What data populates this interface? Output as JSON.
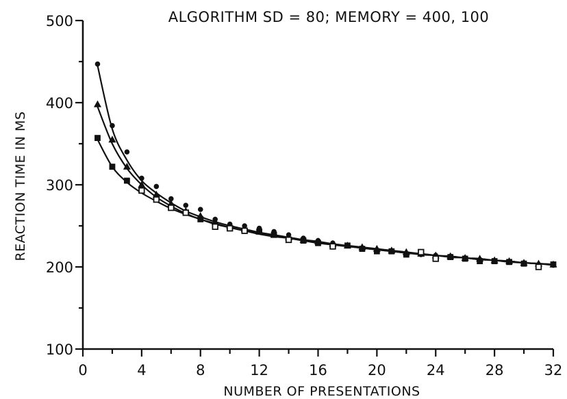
{
  "chart_data": {
    "type": "scatter",
    "title": "ALGORITHM SD = 80; MEMORY = 400, 100",
    "xlabel": "NUMBER OF PRESENTATIONS",
    "ylabel": "REACTION TIME IN MS",
    "xlim": [
      0,
      32
    ],
    "ylim": [
      100,
      500
    ],
    "xticks": [
      0,
      4,
      8,
      12,
      16,
      20,
      24,
      28,
      32
    ],
    "yticks": [
      100,
      200,
      300,
      400,
      500
    ],
    "grid": false,
    "series": [
      {
        "marker": "dot",
        "x": [
          1,
          2,
          3,
          4,
          5,
          6,
          7,
          8,
          9,
          10,
          11,
          12,
          13,
          14,
          15,
          16,
          17,
          18,
          19,
          20,
          21,
          22,
          23,
          24,
          25,
          26,
          27,
          28,
          29,
          30,
          31,
          32
        ],
        "y": [
          447,
          372,
          340,
          308,
          298,
          283,
          275,
          270,
          258,
          252,
          250,
          247,
          243,
          239,
          235,
          232,
          229,
          226,
          223,
          220,
          219,
          216,
          215,
          214,
          213,
          211,
          209,
          207,
          206,
          205,
          203,
          202
        ],
        "fit": [
          445,
          368,
          330,
          305,
          290,
          278,
          268,
          261,
          255,
          250,
          246,
          242,
          239,
          236,
          233,
          231,
          228,
          226,
          224,
          222,
          220,
          218,
          216,
          214,
          213,
          211,
          210,
          208,
          207,
          205,
          204,
          203
        ]
      },
      {
        "marker": "triangle",
        "x": [
          1,
          2,
          3,
          4,
          5,
          6,
          7,
          8,
          9,
          10,
          11,
          12,
          13,
          14,
          15,
          16,
          17,
          18,
          19,
          20,
          21,
          22,
          23,
          24,
          25,
          26,
          27,
          28,
          29,
          30,
          31,
          32
        ],
        "y": [
          398,
          355,
          322,
          300,
          288,
          277,
          268,
          262,
          255,
          250,
          246,
          243,
          239,
          236,
          233,
          231,
          228,
          226,
          224,
          222,
          220,
          218,
          216,
          214,
          213,
          211,
          210,
          208,
          207,
          205,
          204,
          203
        ],
        "fit": [
          395,
          350,
          320,
          300,
          285,
          274,
          265,
          258,
          253,
          248,
          244,
          241,
          238,
          235,
          232,
          230,
          227,
          225,
          223,
          221,
          219,
          217,
          216,
          214,
          212,
          211,
          209,
          208,
          206,
          205,
          204,
          202
        ]
      },
      {
        "marker": "square",
        "x": [
          1,
          2,
          3,
          4,
          5,
          6,
          7,
          8,
          9,
          10,
          11,
          12,
          13,
          14,
          15,
          16,
          17,
          18,
          19,
          20,
          21,
          22,
          23,
          24,
          25,
          26,
          27,
          28,
          29,
          30,
          31,
          32
        ],
        "y": [
          357,
          322,
          305,
          293,
          282,
          272,
          266,
          258,
          249,
          247,
          244,
          243,
          239,
          233,
          232,
          229,
          225,
          226,
          222,
          219,
          219,
          215,
          218,
          210,
          212,
          210,
          207,
          207,
          206,
          204,
          200,
          203
        ],
        "open": [
          false,
          false,
          false,
          true,
          true,
          true,
          true,
          false,
          true,
          true,
          true,
          false,
          false,
          true,
          false,
          false,
          true,
          false,
          false,
          false,
          false,
          false,
          true,
          true,
          false,
          false,
          false,
          false,
          false,
          false,
          true,
          false
        ],
        "fit": [
          355,
          322,
          303,
          290,
          280,
          271,
          264,
          258,
          252,
          248,
          244,
          240,
          237,
          235,
          232,
          229,
          227,
          225,
          223,
          221,
          219,
          217,
          215,
          214,
          212,
          211,
          209,
          208,
          207,
          205,
          204,
          203
        ]
      }
    ]
  }
}
